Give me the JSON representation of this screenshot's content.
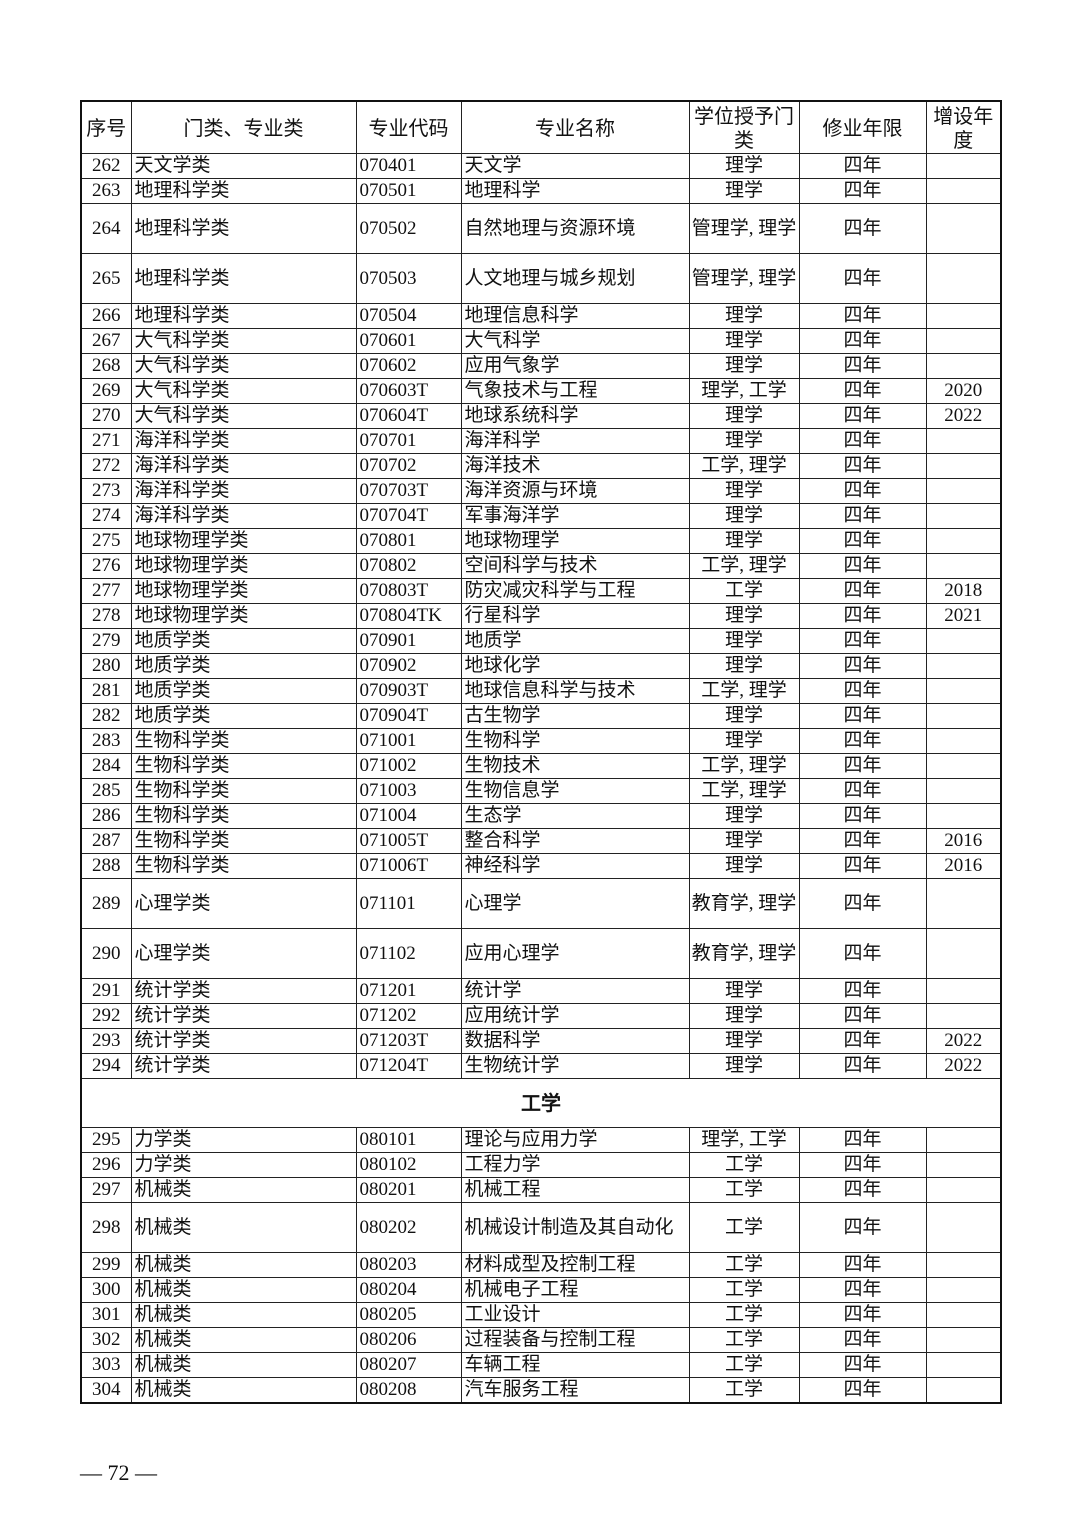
{
  "table": {
    "headers": [
      "序号",
      "门类、专业类",
      "专业代码",
      "专业名称",
      "学位授予门类",
      "修业年限",
      "增设年度"
    ],
    "rows_a": [
      [
        "262",
        "天文学类",
        "070401",
        "天文学",
        "理学",
        "四年",
        ""
      ],
      [
        "263",
        "地理科学类",
        "070501",
        "地理科学",
        "理学",
        "四年",
        ""
      ],
      [
        "264",
        "地理科学类",
        "070502",
        "自然地理与资源环境",
        "管理学, 理学",
        "四年",
        ""
      ],
      [
        "265",
        "地理科学类",
        "070503",
        "人文地理与城乡规划",
        "管理学, 理学",
        "四年",
        ""
      ],
      [
        "266",
        "地理科学类",
        "070504",
        "地理信息科学",
        "理学",
        "四年",
        ""
      ],
      [
        "267",
        "大气科学类",
        "070601",
        "大气科学",
        "理学",
        "四年",
        ""
      ],
      [
        "268",
        "大气科学类",
        "070602",
        "应用气象学",
        "理学",
        "四年",
        ""
      ],
      [
        "269",
        "大气科学类",
        "070603T",
        "气象技术与工程",
        "理学, 工学",
        "四年",
        "2020"
      ],
      [
        "270",
        "大气科学类",
        "070604T",
        "地球系统科学",
        "理学",
        "四年",
        "2022"
      ],
      [
        "271",
        "海洋科学类",
        "070701",
        "海洋科学",
        "理学",
        "四年",
        ""
      ],
      [
        "272",
        "海洋科学类",
        "070702",
        "海洋技术",
        "工学, 理学",
        "四年",
        ""
      ],
      [
        "273",
        "海洋科学类",
        "070703T",
        "海洋资源与环境",
        "理学",
        "四年",
        ""
      ],
      [
        "274",
        "海洋科学类",
        "070704T",
        "军事海洋学",
        "理学",
        "四年",
        ""
      ],
      [
        "275",
        "地球物理学类",
        "070801",
        "地球物理学",
        "理学",
        "四年",
        ""
      ],
      [
        "276",
        "地球物理学类",
        "070802",
        "空间科学与技术",
        "工学, 理学",
        "四年",
        ""
      ],
      [
        "277",
        "地球物理学类",
        "070803T",
        "防灾减灾科学与工程",
        "工学",
        "四年",
        "2018"
      ],
      [
        "278",
        "地球物理学类",
        "070804TK",
        "行星科学",
        "理学",
        "四年",
        "2021"
      ],
      [
        "279",
        "地质学类",
        "070901",
        "地质学",
        "理学",
        "四年",
        ""
      ],
      [
        "280",
        "地质学类",
        "070902",
        "地球化学",
        "理学",
        "四年",
        ""
      ],
      [
        "281",
        "地质学类",
        "070903T",
        "地球信息科学与技术",
        "工学, 理学",
        "四年",
        ""
      ],
      [
        "282",
        "地质学类",
        "070904T",
        "古生物学",
        "理学",
        "四年",
        ""
      ],
      [
        "283",
        "生物科学类",
        "071001",
        "生物科学",
        "理学",
        "四年",
        ""
      ],
      [
        "284",
        "生物科学类",
        "071002",
        "生物技术",
        "工学, 理学",
        "四年",
        ""
      ],
      [
        "285",
        "生物科学类",
        "071003",
        "生物信息学",
        "工学, 理学",
        "四年",
        ""
      ],
      [
        "286",
        "生物科学类",
        "071004",
        "生态学",
        "理学",
        "四年",
        ""
      ],
      [
        "287",
        "生物科学类",
        "071005T",
        "整合科学",
        "理学",
        "四年",
        "2016"
      ],
      [
        "288",
        "生物科学类",
        "071006T",
        "神经科学",
        "理学",
        "四年",
        "2016"
      ],
      [
        "289",
        "心理学类",
        "071101",
        "心理学",
        "教育学, 理学",
        "四年",
        ""
      ],
      [
        "290",
        "心理学类",
        "071102",
        "应用心理学",
        "教育学, 理学",
        "四年",
        ""
      ],
      [
        "291",
        "统计学类",
        "071201",
        "统计学",
        "理学",
        "四年",
        ""
      ],
      [
        "292",
        "统计学类",
        "071202",
        "应用统计学",
        "理学",
        "四年",
        ""
      ],
      [
        "293",
        "统计学类",
        "071203T",
        "数据科学",
        "理学",
        "四年",
        "2022"
      ],
      [
        "294",
        "统计学类",
        "071204T",
        "生物统计学",
        "理学",
        "四年",
        "2022"
      ]
    ],
    "section": "工学",
    "rows_b": [
      [
        "295",
        "力学类",
        "080101",
        "理论与应用力学",
        "理学, 工学",
        "四年",
        ""
      ],
      [
        "296",
        "力学类",
        "080102",
        "工程力学",
        "工学",
        "四年",
        ""
      ],
      [
        "297",
        "机械类",
        "080201",
        "机械工程",
        "工学",
        "四年",
        ""
      ],
      [
        "298",
        "机械类",
        "080202",
        "机械设计制造及其自动化",
        "工学",
        "四年",
        ""
      ],
      [
        "299",
        "机械类",
        "080203",
        "材料成型及控制工程",
        "工学",
        "四年",
        ""
      ],
      [
        "300",
        "机械类",
        "080204",
        "机械电子工程",
        "工学",
        "四年",
        ""
      ],
      [
        "301",
        "机械类",
        "080205",
        "工业设计",
        "工学",
        "四年",
        ""
      ],
      [
        "302",
        "机械类",
        "080206",
        "过程装备与控制工程",
        "工学",
        "四年",
        ""
      ],
      [
        "303",
        "机械类",
        "080207",
        "车辆工程",
        "工学",
        "四年",
        ""
      ],
      [
        "304",
        "机械类",
        "080208",
        "汽车服务工程",
        "工学",
        "四年",
        ""
      ]
    ]
  },
  "page_number": "— 72 —"
}
